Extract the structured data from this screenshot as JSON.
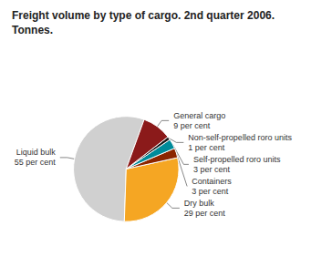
{
  "chart_data": {
    "type": "pie",
    "title": "Freight volume by type of cargo. 2nd quarter 2006.",
    "subtitle": "Tonnes.",
    "categories": [
      "Liquid bulk",
      "Dry bulk",
      "Containers",
      "Self-propelled roro units",
      "Non-self-propelled roro units",
      "General cargo"
    ],
    "values": [
      55,
      29,
      3,
      3,
      1,
      9
    ],
    "value_labels": [
      "55 per cent",
      "29 per cent",
      "3 per cent",
      "3 per cent",
      "1 per cent",
      "9 per cent"
    ],
    "colors": [
      "#d0d0d0",
      "#f5a623",
      "#8b2500",
      "#008b9a",
      "#1a1a1a",
      "#8b1a1a"
    ],
    "data_labels": true,
    "legend": false
  }
}
